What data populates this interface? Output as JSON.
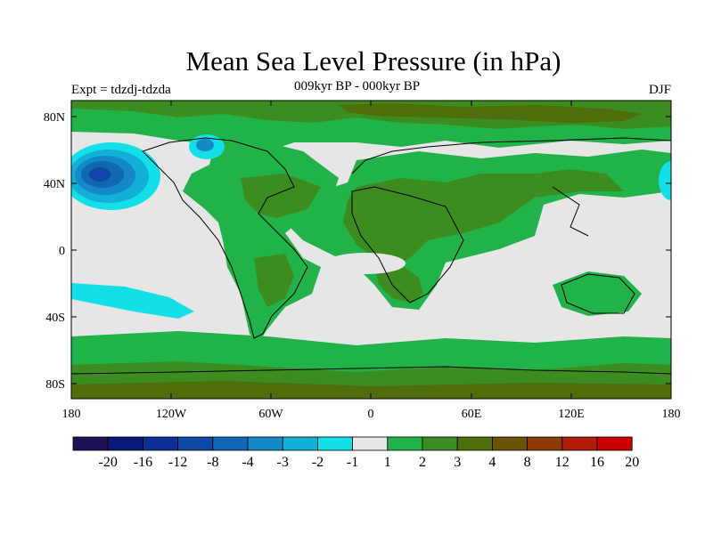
{
  "title": "Mean Sea Level Pressure (in hPa)",
  "subtitle": "009kyr BP - 000kyr BP",
  "experiment_label": "Expt = tdzdj-tdzda",
  "season_label": "DJF",
  "axes": {
    "lat_labels": [
      "80N",
      "40N",
      "0",
      "40S",
      "80S"
    ],
    "lon_labels": [
      "180",
      "120W",
      "60W",
      "0",
      "60E",
      "120E",
      "180"
    ]
  },
  "colorbar": {
    "labels": [
      "-20",
      "-16",
      "-12",
      "-8",
      "-4",
      "-3",
      "-2",
      "-1",
      "1",
      "2",
      "3",
      "4",
      "8",
      "12",
      "16",
      "20"
    ],
    "colors": [
      "#20105a",
      "#0b1a78",
      "#0d2f96",
      "#0e49a8",
      "#1067b4",
      "#1588c8",
      "#12b0d8",
      "#12dfe8",
      "#e6e6e6",
      "#22b24a",
      "#3d8c20",
      "#4e6e0c",
      "#6b5204",
      "#8c3a06",
      "#b01c08",
      "#cc0000"
    ]
  },
  "map_colors": {
    "near_zero": "#e6e6e6",
    "pos_1_2": "#22b24a",
    "pos_2_3": "#3d8c20",
    "pos_3_4": "#4e6e0c",
    "neg_1_2": "#12dfe8",
    "neg_2_3": "#12b0d8",
    "neg_3_4": "#1588c8",
    "neg_4_8": "#1067b4",
    "neg_8_12": "#0e49a8"
  }
}
